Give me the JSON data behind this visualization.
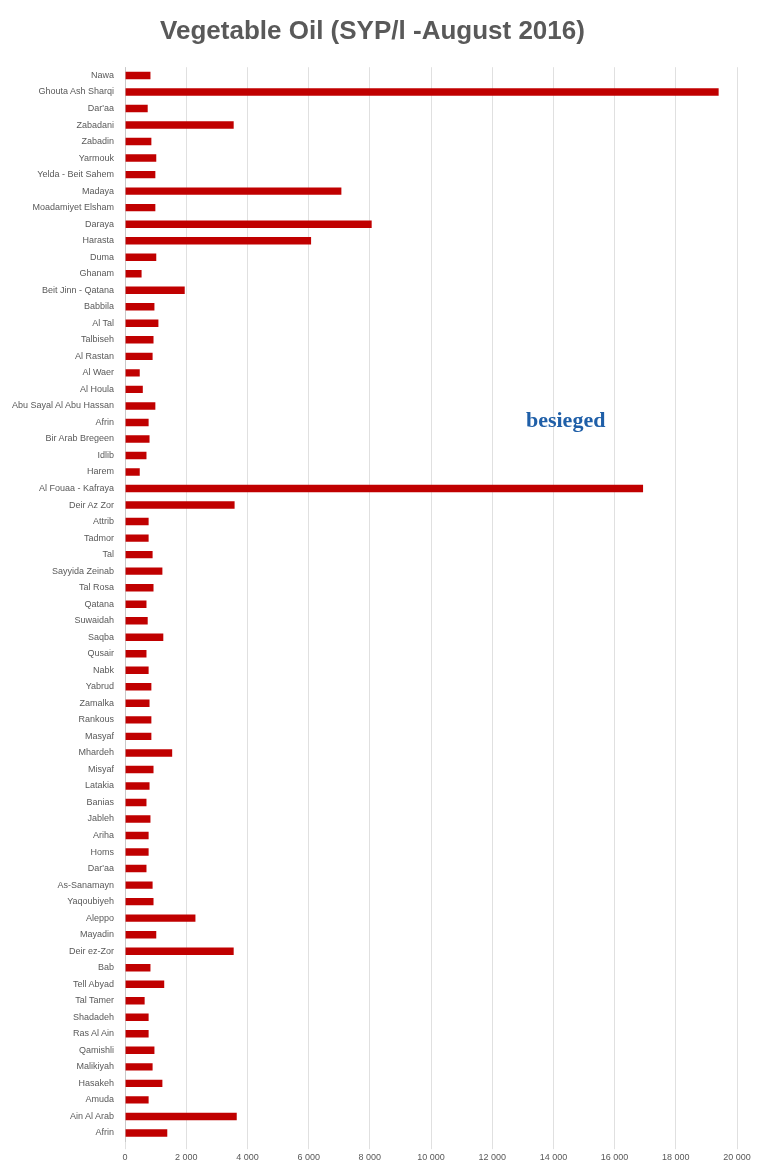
{
  "chart_data": {
    "type": "bar",
    "orientation": "horizontal",
    "title": "Vegetable Oil (SYP/l -August 2016)",
    "annotations": [
      "besieged"
    ],
    "categories": [
      "Nawa",
      "Ghouta Ash Sharqi",
      "Dar'aa",
      "Zabadani",
      "Zabadin",
      "Yarmouk",
      "Yelda - Beit Sahem",
      "Madaya",
      "Moadamiyet Elsham",
      "Daraya",
      "Harasta",
      "Duma",
      "Ghanam",
      "Beit Jinn - Qatana",
      "Babbila",
      "Al Tal",
      "Talbiseh",
      "Al Rastan",
      "Al Waer",
      "Al Houla",
      "Abu Sayal Al Abu Hassan",
      "Afrin",
      "Bir Arab Bregeen",
      "Idlib",
      "Harem",
      "Al Fouaa - Kafraya",
      "Deir Az Zor",
      "Attrib",
      "Tadmor",
      "Tal",
      "Sayyida Zeinab",
      "Tal Rosa",
      "Qatana",
      "Suwaidah",
      "Saqba",
      "Qusair",
      "Nabk",
      "Yabrud",
      "Zamalka",
      "Rankous",
      "Masyaf",
      "Mhardeh",
      "Misyaf",
      "Latakia",
      "Banias",
      "Jableh",
      "Ariha",
      "Homs",
      "Dar'aa",
      "As-Sanamayn",
      "Yaqoubiyeh",
      "Aleppo",
      "Mayadin",
      "Deir ez-Zor",
      "Bab",
      "Tell Abyad",
      "Tal Tamer",
      "Shadadeh",
      "Ras Al Ain",
      "Qamishli",
      "Malikiyah",
      "Hasakeh",
      "Amuda",
      "Ain Al Arab",
      "Afrin"
    ],
    "values": [
      830,
      19400,
      740,
      3550,
      860,
      1020,
      990,
      7070,
      990,
      8060,
      6080,
      1020,
      540,
      1950,
      960,
      1090,
      930,
      900,
      480,
      580,
      990,
      770,
      800,
      700,
      480,
      16930,
      3580,
      770,
      770,
      900,
      1220,
      930,
      700,
      740,
      1250,
      700,
      770,
      860,
      800,
      860,
      860,
      1540,
      930,
      800,
      700,
      830,
      770,
      770,
      700,
      900,
      930,
      2300,
      1020,
      3550,
      830,
      1280,
      640,
      770,
      770,
      960,
      900,
      1220,
      770,
      3650,
      1380
    ],
    "color": "#c00000",
    "xlim": [
      0,
      20000
    ],
    "xticks": [
      0,
      {
        "value": 2000,
        "label": "2 000"
      },
      {
        "value": 4000,
        "label": "4 000"
      },
      {
        "value": 6000,
        "label": "6 000"
      },
      {
        "value": 8000,
        "label": "8 000"
      },
      {
        "value": 10000,
        "label": "10 000"
      },
      {
        "value": 12000,
        "label": "12 000"
      },
      {
        "value": 14000,
        "label": "14 000"
      },
      {
        "value": 16000,
        "label": "16 000"
      },
      {
        "value": 18000,
        "label": "18 000"
      },
      {
        "value": 20000,
        "label": "20 000"
      }
    ],
    "grid": "x",
    "legend": false
  }
}
